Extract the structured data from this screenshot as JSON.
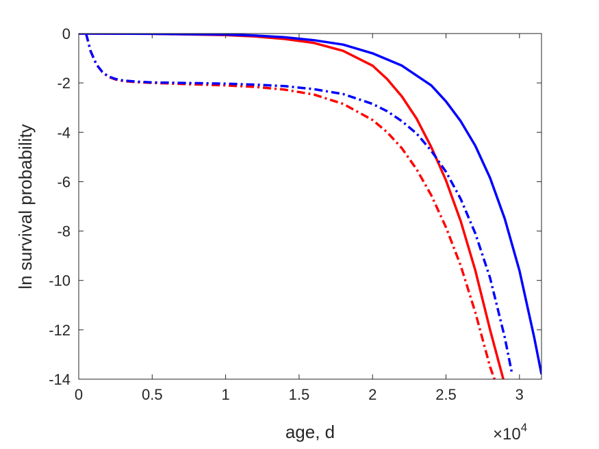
{
  "chart_data": {
    "type": "line",
    "title": "",
    "xlabel": "age, d",
    "ylabel": "ln survival probability",
    "x_exponent_label": {
      "base": "×10",
      "power": "4"
    },
    "xlim": [
      0,
      31500
    ],
    "ylim": [
      -14,
      0
    ],
    "xticks": [
      0,
      5000,
      10000,
      15000,
      20000,
      25000,
      30000
    ],
    "xtick_labels": [
      "0",
      "0.5",
      "1",
      "1.5",
      "2",
      "2.5",
      "3"
    ],
    "yticks": [
      0,
      -2,
      -4,
      -6,
      -8,
      -10,
      -12,
      -14
    ],
    "ytick_labels": [
      "0",
      "-2",
      "-4",
      "-6",
      "-8",
      "-10",
      "-12",
      "-14"
    ],
    "grid": false,
    "box": true,
    "series": [
      {
        "color": "#ff0000",
        "style": "solid",
        "x": [
          0,
          5000,
          10000,
          12000,
          14000,
          16000,
          18000,
          20000,
          21000,
          22000,
          23000,
          24000,
          25000,
          26000,
          27000,
          28000,
          28900
        ],
        "y": [
          0,
          -0.01,
          -0.06,
          -0.12,
          -0.22,
          -0.38,
          -0.7,
          -1.3,
          -1.85,
          -2.55,
          -3.45,
          -4.6,
          -5.95,
          -7.6,
          -9.6,
          -12.0,
          -14.0
        ]
      },
      {
        "color": "#0000ff",
        "style": "solid",
        "x": [
          0,
          5000,
          10000,
          12000,
          14000,
          16000,
          18000,
          20000,
          22000,
          24000,
          25000,
          26000,
          27000,
          28000,
          29000,
          30000,
          31000,
          31500
        ],
        "y": [
          0,
          -0.01,
          -0.04,
          -0.08,
          -0.15,
          -0.27,
          -0.45,
          -0.8,
          -1.3,
          -2.1,
          -2.75,
          -3.55,
          -4.55,
          -5.85,
          -7.5,
          -9.6,
          -12.3,
          -13.8
        ]
      },
      {
        "color": "#ff0000",
        "style": "dashdot",
        "x": [
          500,
          800,
          1200,
          1600,
          2000,
          2500,
          3000,
          4000,
          5000,
          7000,
          10000,
          12000,
          14000,
          16000,
          18000,
          20000,
          21000,
          22000,
          23000,
          24000,
          25000,
          26000,
          27000,
          28000,
          28300
        ],
        "y": [
          0,
          -0.7,
          -1.25,
          -1.55,
          -1.75,
          -1.86,
          -1.92,
          -1.97,
          -2.0,
          -2.04,
          -2.1,
          -2.16,
          -2.27,
          -2.47,
          -2.85,
          -3.5,
          -4.0,
          -4.65,
          -5.5,
          -6.55,
          -7.85,
          -9.4,
          -11.3,
          -13.5,
          -14.0
        ]
      },
      {
        "color": "#0000ff",
        "style": "dashdot",
        "x": [
          500,
          800,
          1200,
          1600,
          2000,
          2500,
          3000,
          4000,
          5000,
          7000,
          10000,
          12000,
          14000,
          16000,
          18000,
          20000,
          21000,
          22000,
          23000,
          24000,
          25000,
          26000,
          27000,
          28000,
          29000,
          29500
        ],
        "y": [
          0,
          -0.7,
          -1.25,
          -1.55,
          -1.73,
          -1.84,
          -1.9,
          -1.95,
          -1.98,
          -2.0,
          -2.03,
          -2.07,
          -2.13,
          -2.25,
          -2.45,
          -2.85,
          -3.15,
          -3.55,
          -4.05,
          -4.75,
          -5.6,
          -6.7,
          -8.1,
          -9.9,
          -12.3,
          -13.8
        ]
      }
    ]
  }
}
